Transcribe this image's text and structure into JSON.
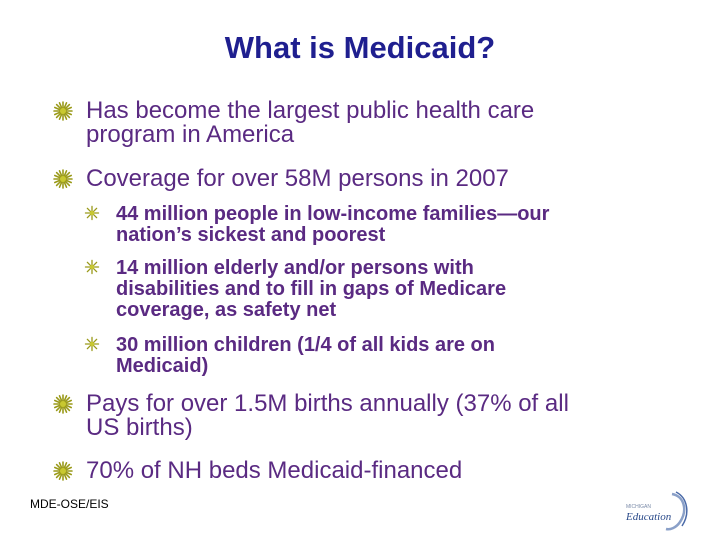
{
  "slide": {
    "title": "What is Medicaid?",
    "bullets": [
      {
        "level": 1,
        "lines": [
          "Has become the largest public health care",
          "program in America"
        ]
      },
      {
        "level": 1,
        "lines": [
          "Coverage for over 58M persons in 2007"
        ]
      },
      {
        "level": 2,
        "lines": [
          "44 million people in low-income families—our",
          "nation’s sickest and poorest"
        ]
      },
      {
        "level": 2,
        "lines": [
          "14 million elderly and/or persons with",
          "disabilities and to fill in gaps of Medicare",
          "coverage, as safety net"
        ]
      },
      {
        "level": 2,
        "lines": [
          "30 million children (1/4 of all kids are on",
          "Medicaid)"
        ]
      },
      {
        "level": 1,
        "lines": [
          "Pays for over 1.5M births annually  (37% of all",
          "US births)"
        ]
      },
      {
        "level": 1,
        "lines": [
          "70% of NH beds Medicaid-financed"
        ]
      }
    ],
    "footer": "MDE-OSE/EIS",
    "logo": {
      "small_text": "MICHIGAN",
      "main_text": "Education"
    },
    "colors": {
      "title": "#1f1f8f",
      "text": "#5a2a82",
      "bullet": "#9a9a1a"
    },
    "bullet_icon": "starburst-bullet-icon"
  }
}
